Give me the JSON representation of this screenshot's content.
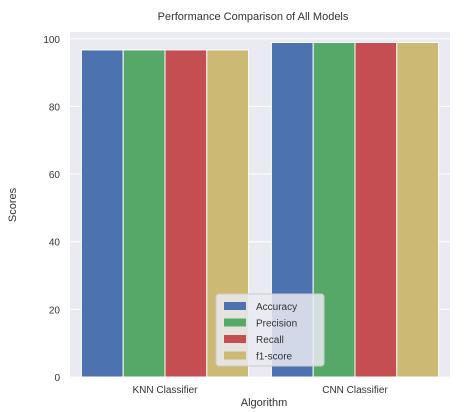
{
  "chart_data": {
    "type": "bar",
    "title": "Performance Comparison of All Models",
    "xlabel": "Algorithm",
    "ylabel": "Scores",
    "categories": [
      "KNN Classifier",
      "CNN Classifier"
    ],
    "series": [
      {
        "name": "Accuracy",
        "values": [
          96.7,
          98.9
        ],
        "color": "#4c72b0"
      },
      {
        "name": "Precision",
        "values": [
          96.7,
          98.9
        ],
        "color": "#55a868"
      },
      {
        "name": "Recall",
        "values": [
          96.7,
          98.9
        ],
        "color": "#c44e52"
      },
      {
        "name": "f1-score",
        "values": [
          96.7,
          98.9
        ],
        "color": "#ccb974"
      }
    ],
    "ylim": [
      0,
      102
    ],
    "yticks": [
      "0",
      "20",
      "40",
      "60",
      "80",
      "100"
    ],
    "grid": true,
    "background": "#eaeaf2",
    "legend_position": "bottom-center"
  }
}
